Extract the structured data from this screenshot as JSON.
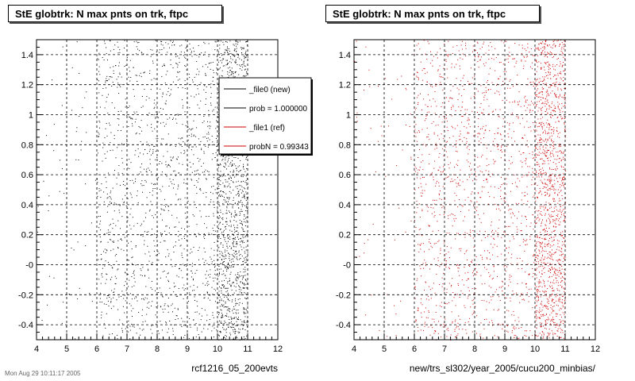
{
  "panels": [
    {
      "title": "StE globtrk: N max pnts on trk, ftpc",
      "xlabel": "rcf1216_05_200evts",
      "color": "#000000"
    },
    {
      "title": "StE globtrk: N max pnts on trk, ftpc",
      "xlabel": "new/trs_sl302/year_2005/cucu200_minbias/",
      "color": "#cc0000"
    }
  ],
  "legend": {
    "entries": [
      {
        "label": "_file0 (new)",
        "color": "#000000"
      },
      {
        "label": "prob = 1.000000",
        "color": "#000000"
      },
      {
        "label": "_file1 (ref)",
        "color": "#cc0000"
      },
      {
        "label": "probN = 0.99343",
        "color": "#cc0000"
      }
    ]
  },
  "footer_text": "Mon Aug 29 10:11:17 2005",
  "chart_data": [
    {
      "type": "scatter",
      "title": "StE globtrk: N max pnts on trk, ftpc",
      "xlabel": "rcf1216_05_200evts",
      "ylabel": "",
      "xlim": [
        4,
        12
      ],
      "ylim": [
        -0.5,
        1.5
      ],
      "xticks": [
        4,
        5,
        6,
        7,
        8,
        9,
        10,
        11,
        12
      ],
      "yticks": [
        -0.4,
        -0.2,
        0,
        0.2,
        0.4,
        0.6,
        0.8,
        1,
        1.2,
        1.4
      ],
      "ytick_labels": [
        "-0.4",
        "-0.2",
        "-0",
        "0.2",
        "0.4",
        "0.6",
        "0.8",
        "1",
        "1.2",
        "1.4"
      ],
      "grid": true,
      "series": [
        {
          "color": "#000000",
          "bands": [
            {
              "x_range": [
                4,
                6
              ],
              "density": 0.02
            },
            {
              "x_range": [
                6,
                10
              ],
              "density": 0.25
            },
            {
              "x_range": [
                10,
                11
              ],
              "density": 1.0
            }
          ]
        }
      ]
    },
    {
      "type": "scatter",
      "title": "StE globtrk: N max pnts on trk, ftpc",
      "xlabel": "new/trs_sl302/year_2005/cucu200_minbias/",
      "ylabel": "",
      "xlim": [
        4,
        12
      ],
      "ylim": [
        -0.5,
        1.5
      ],
      "xticks": [
        4,
        5,
        6,
        7,
        8,
        9,
        10,
        11,
        12
      ],
      "yticks": [
        -0.4,
        -0.2,
        0,
        0.2,
        0.4,
        0.6,
        0.8,
        1,
        1.2,
        1.4
      ],
      "ytick_labels": [
        "-0.4",
        "-0.2",
        "-0",
        "0.2",
        "0.4",
        "0.6",
        "0.8",
        "1",
        "1.2",
        "1.4"
      ],
      "grid": true,
      "series": [
        {
          "color": "#cc0000",
          "bands": [
            {
              "x_range": [
                4,
                6
              ],
              "density": 0.02
            },
            {
              "x_range": [
                6,
                10
              ],
              "density": 0.25
            },
            {
              "x_range": [
                10,
                11
              ],
              "density": 1.0
            }
          ]
        }
      ]
    }
  ]
}
